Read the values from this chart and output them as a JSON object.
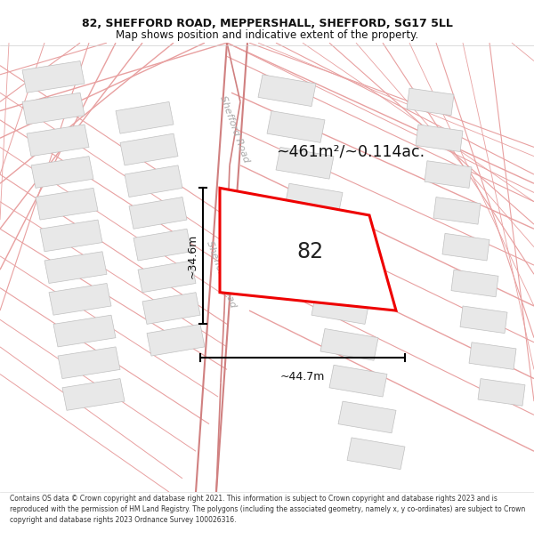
{
  "title_line1": "82, SHEFFORD ROAD, MEPPERSHALL, SHEFFORD, SG17 5LL",
  "title_line2": "Map shows position and indicative extent of the property.",
  "footer_text": "Contains OS data © Crown copyright and database right 2021. This information is subject to Crown copyright and database rights 2023 and is reproduced with the permission of HM Land Registry. The polygons (including the associated geometry, namely x, y co-ordinates) are subject to Crown copyright and database rights 2023 Ordnance Survey 100026316.",
  "area_label": "~461m²/~0.114ac.",
  "number_label": "82",
  "dim_vertical": "~34.6m",
  "dim_horizontal": "~44.7m",
  "road_label": "Shefford Road",
  "bg_color": "#ffffff",
  "map_bg": "#ffffff",
  "road_line_color": "#e8a0a0",
  "road_outline_color": "#d08080",
  "building_fill": "#e8e8e8",
  "building_edge": "#c0c0c0",
  "plot_outline_color": "#ee0000",
  "plot_fill_color": "#ffffff",
  "dim_color": "#111111",
  "title_color": "#111111",
  "footer_color": "#333333",
  "road_label_color": "#aaaaaa"
}
